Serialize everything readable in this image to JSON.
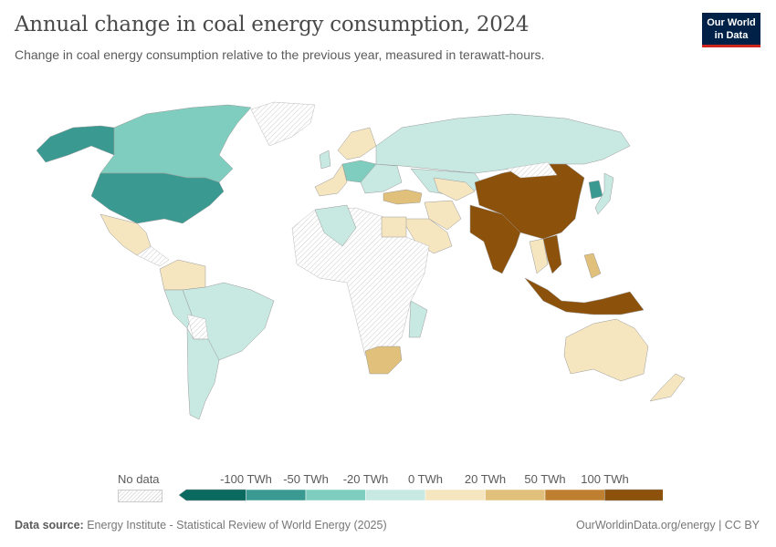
{
  "header": {
    "title": "Annual change in coal energy consumption, 2024",
    "subtitle": "Change in coal energy consumption relative to the previous year, measured in terawatt-hours.",
    "logo": "Our World in Data"
  },
  "legend": {
    "no_data": "No data",
    "bins": [
      "-100 TWh",
      "-50 TWh",
      "-20 TWh",
      "0 TWh",
      "20 TWh",
      "50 TWh",
      "100 TWh"
    ],
    "colors": [
      "#0a6a60",
      "#3a9a92",
      "#7fcdbf",
      "#c7e9e2",
      "#f6e6c0",
      "#e0c07a",
      "#bf7f30",
      "#8c510a"
    ],
    "no_data_pattern": "hatched"
  },
  "footer": {
    "source_label": "Data source:",
    "source": "Energy Institute - Statistical Review of World Energy (2025)",
    "url": "OurWorldinData.org/energy | CC BY"
  }
}
